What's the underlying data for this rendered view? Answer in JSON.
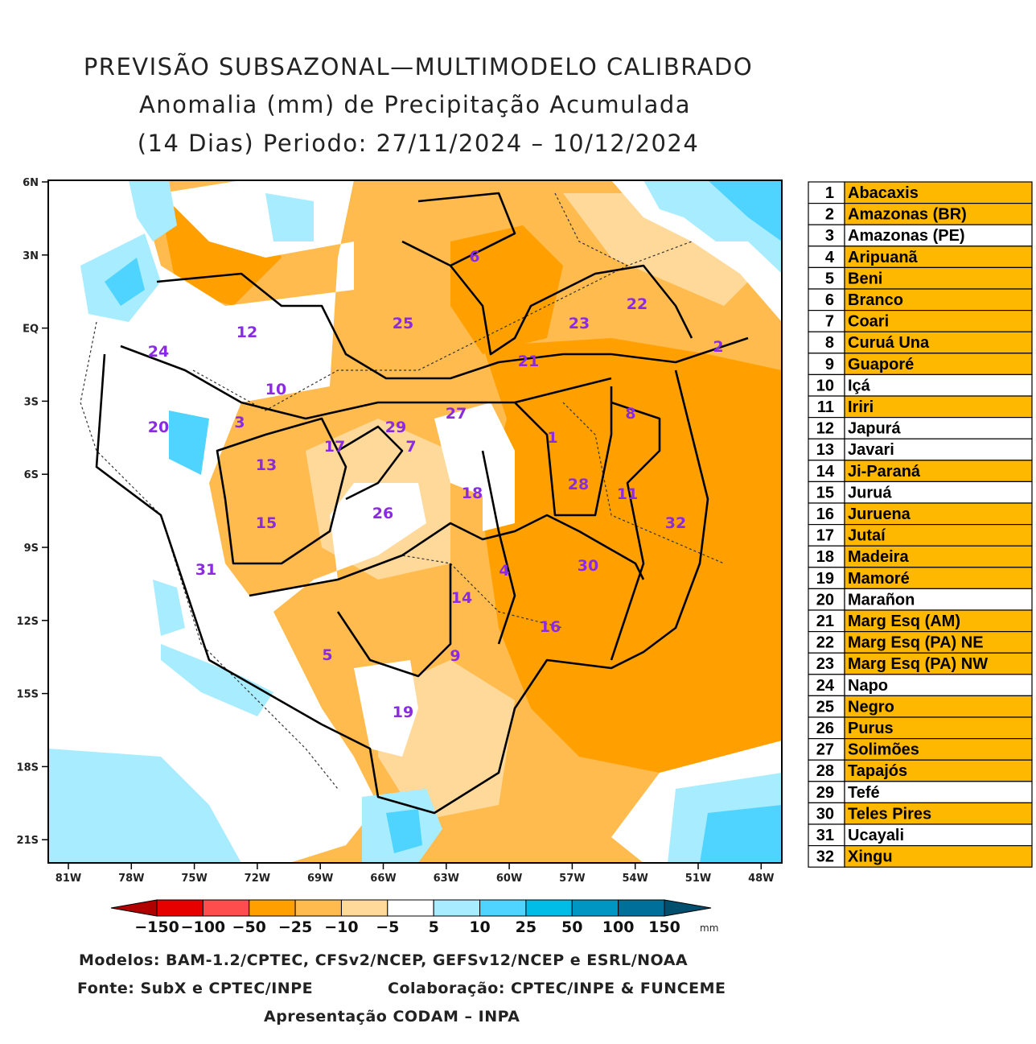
{
  "title": [
    "PREVISÃO SUBSAZONAL—MULTIMODELO CALIBRADO",
    "Anomalia (mm) de Precipitação Acumulada",
    "(14 Dias) Periodo: 27/11/2024 – 10/12/2024"
  ],
  "map": {
    "lat_labels": [
      "6N",
      "3N",
      "EQ",
      "3S",
      "6S",
      "9S",
      "12S",
      "15S",
      "18S",
      "21S"
    ],
    "lon_labels": [
      "81W",
      "78W",
      "75W",
      "72W",
      "69W",
      "66W",
      "63W",
      "60W",
      "57W",
      "54W",
      "51W",
      "48W"
    ],
    "basin_labels": [
      "1",
      "2",
      "3",
      "4",
      "5",
      "6",
      "7",
      "8",
      "9",
      "10",
      "11",
      "12",
      "13",
      "14",
      "15",
      "16",
      "17",
      "18",
      "19",
      "20",
      "21",
      "22",
      "23",
      "24",
      "25",
      "26",
      "27",
      "28",
      "29",
      "30",
      "31",
      "32"
    ]
  },
  "colorbar": {
    "labels": [
      "−150",
      "−100",
      "−50",
      "−25",
      "−10",
      "−5",
      "5",
      "10",
      "25",
      "50",
      "100",
      "150"
    ],
    "unit": "mm",
    "colors": [
      "#b00000",
      "#e60000",
      "#ff4c4c",
      "#ffa000",
      "#ffbb4d",
      "#ffd99a",
      "#ffffff",
      "#a8ecff",
      "#4fd4ff",
      "#00bde8",
      "#0096c4",
      "#00709a",
      "#004f6e"
    ]
  },
  "footer": [
    "Modelos: BAM-1.2/CPTEC, CFSv2/NCEP, GEFSv12/NCEP e ESRL/NOAA",
    "Fonte: SubX e CPTEC/INPE",
    "Colaboração: CPTEC/INPE & FUNCEME",
    "Apresentação CODAM – INPA"
  ],
  "table": {
    "highlight_color": "#ffb800",
    "rows": [
      {
        "number": "1",
        "name": "Abacaxis",
        "highlighted": true
      },
      {
        "number": "2",
        "name": "Amazonas (BR)",
        "highlighted": true
      },
      {
        "number": "3",
        "name": "Amazonas (PE)",
        "highlighted": false
      },
      {
        "number": "4",
        "name": "Aripuanã",
        "highlighted": true
      },
      {
        "number": "5",
        "name": "Beni",
        "highlighted": true
      },
      {
        "number": "6",
        "name": "Branco",
        "highlighted": true
      },
      {
        "number": "7",
        "name": "Coari",
        "highlighted": true
      },
      {
        "number": "8",
        "name": "Curuá Una",
        "highlighted": true
      },
      {
        "number": "9",
        "name": "Guaporé",
        "highlighted": true
      },
      {
        "number": "10",
        "name": "Içá",
        "highlighted": false
      },
      {
        "number": "11",
        "name": "Iriri",
        "highlighted": true
      },
      {
        "number": "12",
        "name": "Japurá",
        "highlighted": false
      },
      {
        "number": "13",
        "name": "Javari",
        "highlighted": false
      },
      {
        "number": "14",
        "name": "Ji-Paraná",
        "highlighted": true
      },
      {
        "number": "15",
        "name": "Juruá",
        "highlighted": false
      },
      {
        "number": "16",
        "name": "Juruena",
        "highlighted": true
      },
      {
        "number": "17",
        "name": "Jutaí",
        "highlighted": true
      },
      {
        "number": "18",
        "name": "Madeira",
        "highlighted": true
      },
      {
        "number": "19",
        "name": "Mamoré",
        "highlighted": true
      },
      {
        "number": "20",
        "name": "Marañon",
        "highlighted": false
      },
      {
        "number": "21",
        "name": "Marg Esq (AM)",
        "highlighted": true
      },
      {
        "number": "22",
        "name": "Marg Esq (PA) NE",
        "highlighted": true
      },
      {
        "number": "23",
        "name": "Marg Esq (PA) NW",
        "highlighted": true
      },
      {
        "number": "24",
        "name": "Napo",
        "highlighted": false
      },
      {
        "number": "25",
        "name": "Negro",
        "highlighted": true
      },
      {
        "number": "26",
        "name": "Purus",
        "highlighted": true
      },
      {
        "number": "27",
        "name": "Solimões",
        "highlighted": true
      },
      {
        "number": "28",
        "name": "Tapajós",
        "highlighted": true
      },
      {
        "number": "29",
        "name": "Tefé",
        "highlighted": false
      },
      {
        "number": "30",
        "name": "Teles Pires",
        "highlighted": true
      },
      {
        "number": "31",
        "name": "Ucayali",
        "highlighted": false
      },
      {
        "number": "32",
        "name": "Xingu",
        "highlighted": true
      }
    ]
  }
}
